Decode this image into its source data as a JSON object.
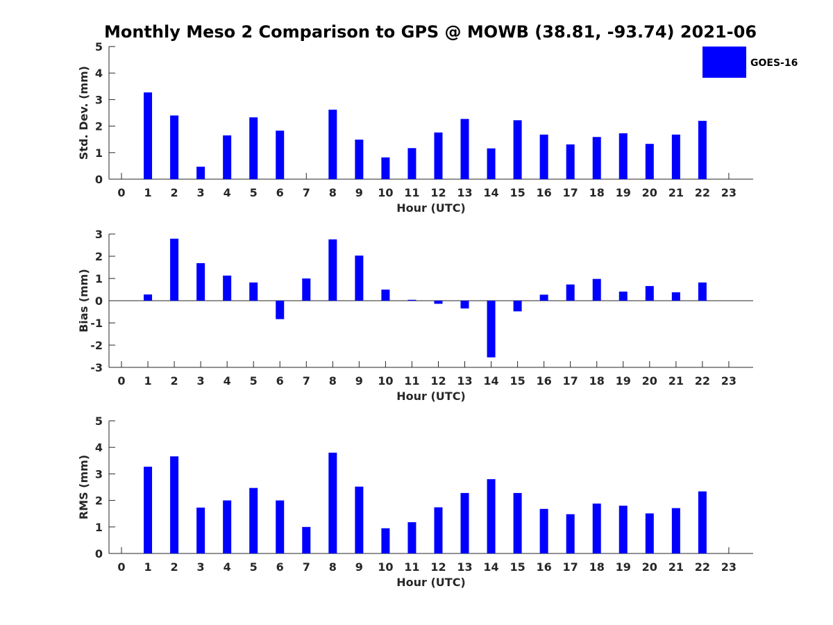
{
  "title": "Monthly Meso 2 Comparison to GPS @ MOWB (38.81, -93.74) 2021-06",
  "legend": {
    "label": "GOES-16"
  },
  "bar_color": "#0000ff",
  "chart_data": [
    {
      "type": "bar",
      "name": "std",
      "xlabel": "Hour (UTC)",
      "ylabel": "Std. Dev. (mm)",
      "ylim": [
        0,
        5
      ],
      "yticks": [
        0,
        1,
        2,
        3,
        4,
        5
      ],
      "categories": [
        "0",
        "1",
        "2",
        "3",
        "4",
        "5",
        "6",
        "7",
        "8",
        "9",
        "10",
        "11",
        "12",
        "13",
        "14",
        "15",
        "16",
        "17",
        "18",
        "19",
        "20",
        "21",
        "22",
        "23"
      ],
      "values": [
        null,
        3.27,
        2.4,
        0.47,
        1.65,
        2.33,
        1.83,
        null,
        2.62,
        1.49,
        0.82,
        1.17,
        1.76,
        2.27,
        1.16,
        2.22,
        1.68,
        1.31,
        1.59,
        1.73,
        1.33,
        1.68,
        2.2,
        null
      ],
      "zero_line": false,
      "show_legend": true
    },
    {
      "type": "bar",
      "name": "bias",
      "xlabel": "Hour (UTC)",
      "ylabel": "Bias (mm)",
      "ylim": [
        -3,
        3
      ],
      "yticks": [
        -3,
        -2,
        -1,
        0,
        1,
        2,
        3
      ],
      "categories": [
        "0",
        "1",
        "2",
        "3",
        "4",
        "5",
        "6",
        "7",
        "8",
        "9",
        "10",
        "11",
        "12",
        "13",
        "14",
        "15",
        "16",
        "17",
        "18",
        "19",
        "20",
        "21",
        "22",
        "23"
      ],
      "values": [
        null,
        0.28,
        2.79,
        1.69,
        1.13,
        0.82,
        -0.83,
        1.0,
        2.76,
        2.03,
        0.5,
        0.04,
        -0.14,
        -0.35,
        -2.55,
        -0.48,
        0.27,
        0.73,
        0.98,
        0.41,
        0.66,
        0.38,
        0.82,
        null
      ],
      "zero_line": true,
      "show_legend": false
    },
    {
      "type": "bar",
      "name": "rms",
      "xlabel": "Hour (UTC)",
      "ylabel": "RMS (mm)",
      "ylim": [
        0,
        5
      ],
      "yticks": [
        0,
        1,
        2,
        3,
        4,
        5
      ],
      "categories": [
        "0",
        "1",
        "2",
        "3",
        "4",
        "5",
        "6",
        "7",
        "8",
        "9",
        "10",
        "11",
        "12",
        "13",
        "14",
        "15",
        "16",
        "17",
        "18",
        "19",
        "20",
        "21",
        "22",
        "23"
      ],
      "values": [
        null,
        3.27,
        3.66,
        1.73,
        2.0,
        2.47,
        2.0,
        1.0,
        3.8,
        2.52,
        0.95,
        1.18,
        1.74,
        2.28,
        2.8,
        2.28,
        1.68,
        1.48,
        1.88,
        1.8,
        1.51,
        1.71,
        2.34,
        null
      ],
      "zero_line": false,
      "show_legend": false
    }
  ]
}
